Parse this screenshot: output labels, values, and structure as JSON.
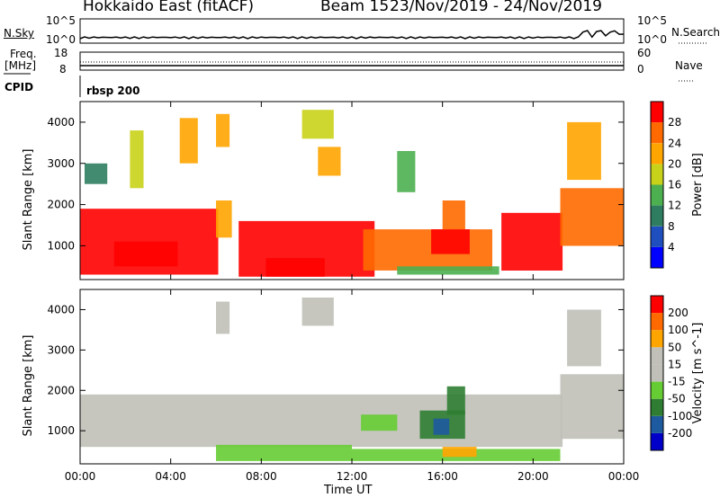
{
  "header": {
    "station": "Hokkaido East (fitACF)",
    "beam": "Beam 15",
    "date_range": "23/Nov/2019 - 24/Nov/2019"
  },
  "strips": {
    "nsky_label": "N.Sky",
    "nsky_ticks": [
      "10^5",
      "10^0"
    ],
    "nsearch_label": "N.Search",
    "freq_label": "Freq.",
    "freq_unit": "[MHz]",
    "freq_ticks": [
      "18",
      "8"
    ],
    "nave_ticks": [
      "60",
      "0"
    ],
    "nave_label": "Nave",
    "cpid_label": "CPID",
    "cpid_value": "rbsp 200"
  },
  "colors": {
    "power": [
      "#0000ff",
      "#1f4fbf",
      "#2e7d60",
      "#4caf50",
      "#c9d21a",
      "#ffa500",
      "#ff6a00",
      "#ff0000"
    ],
    "velocity": [
      "#0000c8",
      "#1e5aa0",
      "#2e7d32",
      "#66cc33",
      "#c0c0b8",
      "#c0c0b8",
      "#ffa500",
      "#ff6a00",
      "#ff0000"
    ]
  },
  "chart_data": [
    {
      "type": "heatmap",
      "panel": "power",
      "xlabel": "",
      "ylabel": "Slant Range [km]",
      "x_ticks": [
        "00:00",
        "04:00",
        "08:00",
        "12:00",
        "16:00",
        "20:00",
        "00:00"
      ],
      "y_ticks": [
        "1000",
        "2000",
        "3000",
        "4000"
      ],
      "ylim": [
        180,
        4500
      ],
      "colorbar_label": "Power [dB]",
      "colorbar_ticks": [
        "4",
        "8",
        "12",
        "16",
        "20",
        "24",
        "28"
      ],
      "regions": [
        {
          "t0": 0.0,
          "t1": 6.1,
          "r0": 300,
          "r1": 1900,
          "level": 7
        },
        {
          "t0": 1.5,
          "t1": 4.3,
          "r0": 500,
          "r1": 1100,
          "level": 7
        },
        {
          "t0": 6.0,
          "t1": 6.7,
          "r0": 1200,
          "r1": 2100,
          "level": 5
        },
        {
          "t0": 7.0,
          "t1": 13.0,
          "r0": 250,
          "r1": 1600,
          "level": 7
        },
        {
          "t0": 8.2,
          "t1": 10.8,
          "r0": 250,
          "r1": 700,
          "level": 7
        },
        {
          "t0": 12.5,
          "t1": 18.2,
          "r0": 400,
          "r1": 1400,
          "level": 6
        },
        {
          "t0": 15.5,
          "t1": 17.2,
          "r0": 800,
          "r1": 1400,
          "level": 7
        },
        {
          "t0": 16.0,
          "t1": 17.0,
          "r0": 1400,
          "r1": 2100,
          "level": 6
        },
        {
          "t0": 18.6,
          "t1": 21.3,
          "r0": 400,
          "r1": 1800,
          "level": 7
        },
        {
          "t0": 21.2,
          "t1": 24.0,
          "r0": 1000,
          "r1": 2400,
          "level": 6
        },
        {
          "t0": 14.0,
          "t1": 18.5,
          "r0": 300,
          "r1": 500,
          "level": 3
        },
        {
          "t0": 2.2,
          "t1": 2.8,
          "r0": 2400,
          "r1": 3800,
          "level": 4
        },
        {
          "t0": 4.4,
          "t1": 5.2,
          "r0": 3000,
          "r1": 4100,
          "level": 5
        },
        {
          "t0": 6.0,
          "t1": 6.6,
          "r0": 3400,
          "r1": 4200,
          "level": 5
        },
        {
          "t0": 9.8,
          "t1": 11.2,
          "r0": 3600,
          "r1": 4300,
          "level": 4
        },
        {
          "t0": 10.5,
          "t1": 11.5,
          "r0": 2700,
          "r1": 3400,
          "level": 5
        },
        {
          "t0": 14.0,
          "t1": 14.8,
          "r0": 2300,
          "r1": 3300,
          "level": 3
        },
        {
          "t0": 21.5,
          "t1": 23.0,
          "r0": 2600,
          "r1": 4000,
          "level": 5
        },
        {
          "t0": 0.2,
          "t1": 1.2,
          "r0": 2500,
          "r1": 3000,
          "level": 2
        }
      ]
    },
    {
      "type": "heatmap",
      "panel": "velocity",
      "xlabel": "Time UT",
      "ylabel": "Slant Range [km]",
      "x_ticks": [
        "00:00",
        "04:00",
        "08:00",
        "12:00",
        "16:00",
        "20:00",
        "00:00"
      ],
      "y_ticks": [
        "1000",
        "2000",
        "3000",
        "4000"
      ],
      "ylim": [
        180,
        4500
      ],
      "colorbar_label": "Velocity [m s^-1]",
      "colorbar_ticks": [
        "200",
        "100",
        "50",
        "15",
        "-15",
        "-50",
        "-100",
        "-200"
      ],
      "regions": [
        {
          "t0": 0.0,
          "t1": 21.3,
          "r0": 600,
          "r1": 1900,
          "level": 4
        },
        {
          "t0": 21.2,
          "t1": 24.0,
          "r0": 800,
          "r1": 2400,
          "level": 4
        },
        {
          "t0": 6.0,
          "t1": 12.0,
          "r0": 250,
          "r1": 650,
          "level": 3
        },
        {
          "t0": 12.0,
          "t1": 21.2,
          "r0": 250,
          "r1": 550,
          "level": 3
        },
        {
          "t0": 15.0,
          "t1": 17.0,
          "r0": 800,
          "r1": 1500,
          "level": 2
        },
        {
          "t0": 16.2,
          "t1": 17.0,
          "r0": 1400,
          "r1": 2100,
          "level": 2
        },
        {
          "t0": 15.6,
          "t1": 16.3,
          "r0": 900,
          "r1": 1300,
          "level": 1
        },
        {
          "t0": 16.0,
          "t1": 17.5,
          "r0": 350,
          "r1": 600,
          "level": 6
        },
        {
          "t0": 12.4,
          "t1": 14.0,
          "r0": 1000,
          "r1": 1400,
          "level": 3
        },
        {
          "t0": 6.0,
          "t1": 6.6,
          "r0": 3400,
          "r1": 4200,
          "level": 4
        },
        {
          "t0": 9.8,
          "t1": 11.2,
          "r0": 3600,
          "r1": 4300,
          "level": 4
        },
        {
          "t0": 21.5,
          "t1": 23.0,
          "r0": 2600,
          "r1": 4000,
          "level": 4
        }
      ]
    }
  ]
}
